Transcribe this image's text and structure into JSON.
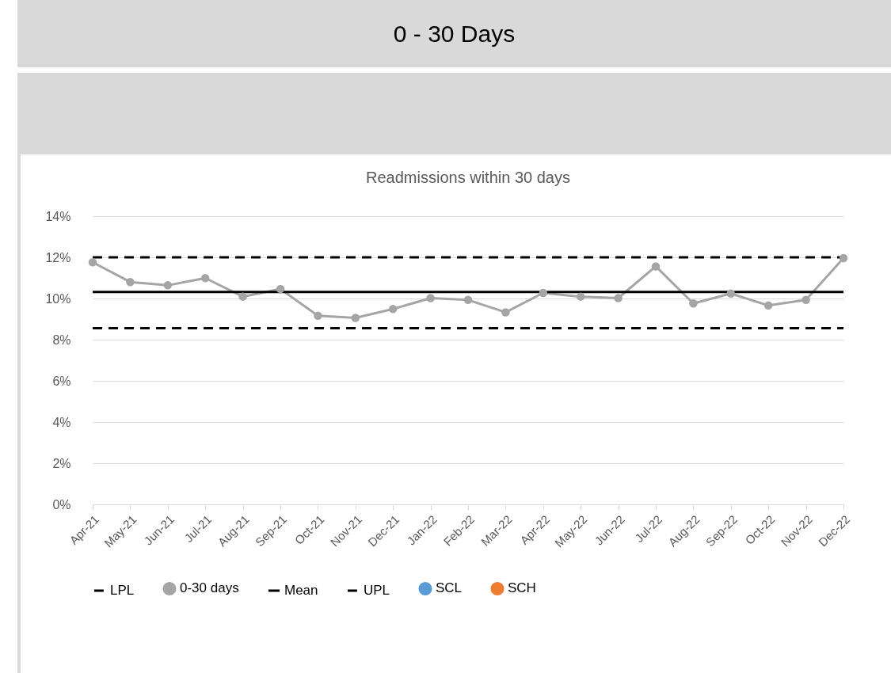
{
  "chart_data": {
    "type": "line",
    "title": "0 - 30 Days",
    "subtitle": "Readmissions within 30 days",
    "categories": [
      "Apr-21",
      "May-21",
      "Jun-21",
      "Jul-21",
      "Aug-21",
      "Sep-21",
      "Oct-21",
      "Nov-21",
      "Dec-21",
      "Jan-22",
      "Feb-22",
      "Mar-22",
      "Apr-22",
      "May-22",
      "Jun-22",
      "Jul-22",
      "Aug-22",
      "Sep-22",
      "Oct-22",
      "Nov-22",
      "Dec-22"
    ],
    "series": [
      {
        "name": "LPL",
        "color": "#000000",
        "line_style": "dashed",
        "marker": "none",
        "values": [
          8.56,
          8.56,
          8.56,
          8.56,
          8.56,
          8.56,
          8.56,
          8.56,
          8.56,
          8.56,
          8.56,
          8.56,
          8.56,
          8.56,
          8.56,
          8.56,
          8.56,
          8.56,
          8.56,
          8.56,
          8.56
        ]
      },
      {
        "name": "0-30 days",
        "color": "#a5a5a5",
        "line_style": "solid",
        "marker": "circle",
        "values": [
          11.76,
          10.8,
          10.64,
          10.99,
          10.09,
          10.46,
          9.16,
          9.06,
          9.49,
          10.02,
          9.93,
          9.33,
          10.27,
          10.09,
          10.02,
          11.56,
          9.76,
          10.24,
          9.66,
          9.93,
          11.96
        ]
      },
      {
        "name": "Mean",
        "color": "#000000",
        "line_style": "solid",
        "marker": "none",
        "values": [
          10.32,
          10.32,
          10.32,
          10.32,
          10.32,
          10.32,
          10.32,
          10.32,
          10.32,
          10.32,
          10.32,
          10.32,
          10.32,
          10.32,
          10.32,
          10.32,
          10.32,
          10.32,
          10.32,
          10.32,
          10.32
        ]
      },
      {
        "name": "UPL",
        "color": "#000000",
        "line_style": "dashed",
        "marker": "none",
        "values": [
          12,
          12,
          12,
          12,
          12,
          12,
          12,
          12,
          12,
          12,
          12,
          12,
          12,
          12,
          12,
          12,
          12,
          12,
          12,
          12,
          12
        ]
      },
      {
        "name": "SCL",
        "type": "scatter",
        "color": "#5b9bd5",
        "marker": "circle",
        "values": [
          null,
          null,
          null,
          null,
          null,
          null,
          null,
          null,
          null,
          null,
          null,
          null,
          null,
          null,
          null,
          null,
          null,
          null,
          null,
          null,
          null
        ]
      },
      {
        "name": "SCH",
        "type": "scatter",
        "color": "#ed7d31",
        "marker": "circle",
        "values": [
          null,
          null,
          null,
          null,
          null,
          null,
          null,
          null,
          null,
          null,
          null,
          null,
          null,
          null,
          null,
          null,
          null,
          null,
          null,
          null,
          null
        ]
      }
    ],
    "ylim": [
      0,
      14
    ],
    "yticks": [
      {
        "value": 0,
        "label": "0%"
      },
      {
        "value": 2,
        "label": "2%"
      },
      {
        "value": 4,
        "label": "4%"
      },
      {
        "value": 6,
        "label": "6%"
      },
      {
        "value": 8,
        "label": "8%"
      },
      {
        "value": 10,
        "label": "10%"
      },
      {
        "value": 12,
        "label": "12%"
      },
      {
        "value": 14,
        "label": "14%"
      }
    ],
    "grid": "y",
    "legend": "bottom"
  }
}
